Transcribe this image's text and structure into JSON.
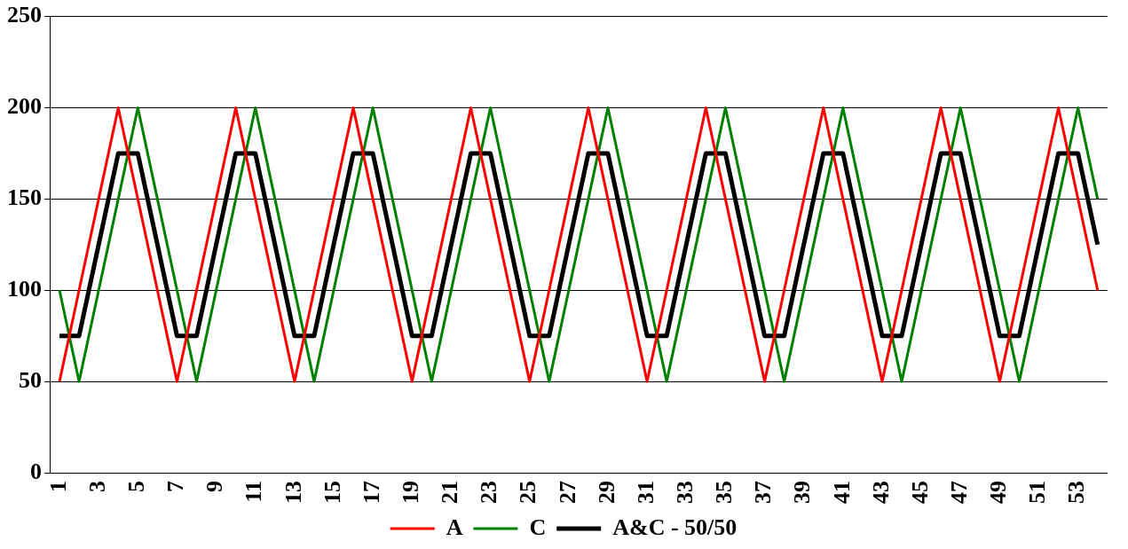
{
  "chart_data": {
    "type": "line",
    "categories": [
      "1",
      null,
      "3",
      null,
      "5",
      null,
      "7",
      null,
      "9",
      null,
      "11",
      null,
      "13",
      null,
      "15",
      null,
      "17",
      null,
      "19",
      null,
      "21",
      null,
      "23",
      null,
      "25",
      null,
      "27",
      null,
      "29",
      null,
      "31",
      null,
      "33",
      null,
      "35",
      null,
      "37",
      null,
      "39",
      null,
      "41",
      null,
      "43",
      null,
      "45",
      null,
      "47",
      null,
      "49",
      null,
      "51",
      null,
      "53",
      null
    ],
    "series": [
      {
        "name": "A",
        "color": "#ff0000",
        "values": [
          50,
          100,
          150,
          200,
          150,
          100,
          50,
          100,
          150,
          200,
          150,
          100,
          50,
          100,
          150,
          200,
          150,
          100,
          50,
          100,
          150,
          200,
          150,
          100,
          50,
          100,
          150,
          200,
          150,
          100,
          50,
          100,
          150,
          200,
          150,
          100,
          50,
          100,
          150,
          200,
          150,
          100,
          50,
          100,
          150,
          200,
          150,
          100,
          50,
          100,
          150,
          200,
          150,
          100
        ]
      },
      {
        "name": "C",
        "color": "#008000",
        "values": [
          100,
          50,
          100,
          150,
          200,
          150,
          100,
          50,
          100,
          150,
          200,
          150,
          100,
          50,
          100,
          150,
          200,
          150,
          100,
          50,
          100,
          150,
          200,
          150,
          100,
          50,
          100,
          150,
          200,
          150,
          100,
          50,
          100,
          150,
          200,
          150,
          100,
          50,
          100,
          150,
          200,
          150,
          100,
          50,
          100,
          150,
          200,
          150,
          100,
          50,
          100,
          150,
          200,
          150
        ]
      },
      {
        "name": "A&C - 50/50",
        "color": "#000000",
        "values": [
          75,
          75,
          125,
          175,
          175,
          125,
          75,
          75,
          125,
          175,
          175,
          125,
          75,
          75,
          125,
          175,
          175,
          125,
          75,
          75,
          125,
          175,
          175,
          125,
          75,
          75,
          125,
          175,
          175,
          125,
          75,
          75,
          125,
          175,
          175,
          125,
          75,
          75,
          125,
          175,
          175,
          125,
          75,
          75,
          125,
          175,
          175,
          125,
          75,
          75,
          125,
          175,
          175,
          125
        ]
      }
    ],
    "ylim": [
      0,
      250
    ],
    "yticks": [
      0,
      50,
      100,
      150,
      200,
      250
    ],
    "grid": "y",
    "legend": "bottom",
    "marker": "none",
    "line_style": "solid"
  }
}
